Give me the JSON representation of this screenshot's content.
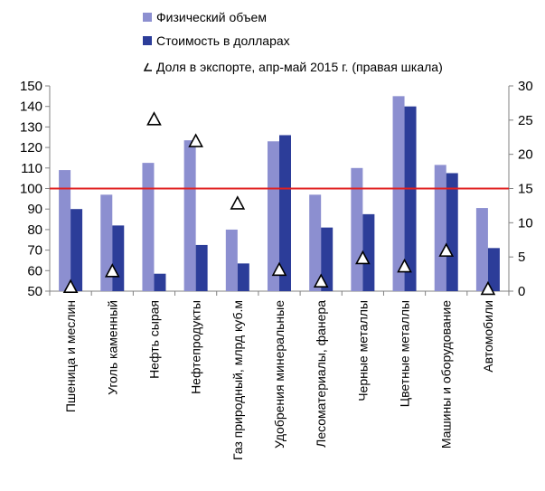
{
  "chart_data": {
    "type": "bar",
    "categories": [
      "Пшеница и меслин",
      "Уголь каменный",
      "Нефть сырая",
      "Нефтепродукты",
      "Газ природный, млрд куб.м",
      "Удобрения минеральные",
      "Лесоматериалы, фанера",
      "Черные металлы",
      "Цветные металлы",
      "Машины и оборудование",
      "Автомобили"
    ],
    "series": [
      {
        "name": "Физический объем",
        "type": "bar",
        "axis": "left",
        "color": "#8c8fd0",
        "values": [
          109,
          97,
          112.5,
          123.5,
          80,
          123,
          97,
          110,
          145,
          111.5,
          90.5
        ]
      },
      {
        "name": "Стоимость в долларах",
        "type": "bar",
        "axis": "left",
        "color": "#2c3d99",
        "values": [
          90,
          82,
          58.5,
          72.5,
          63.5,
          126,
          81,
          87.5,
          140,
          107.5,
          71
        ]
      },
      {
        "name": "Доля в экспорте, апр-май 2015 г. (правая шкала)",
        "type": "marker",
        "marker": "triangle",
        "axis": "right",
        "color": "#ffffff",
        "values": [
          0.5,
          2.8,
          25,
          21.8,
          12.7,
          3,
          1.3,
          4.7,
          3.5,
          5.8,
          0.2
        ]
      }
    ],
    "reference_line": {
      "value": 100,
      "axis": "left",
      "color": "#e02020"
    },
    "y_left": {
      "ylim": [
        50,
        150
      ],
      "ticks": [
        50,
        60,
        70,
        80,
        90,
        100,
        110,
        120,
        130,
        140,
        150
      ]
    },
    "y_right": {
      "ylim": [
        0,
        30
      ],
      "ticks": [
        0,
        5,
        10,
        15,
        20,
        25,
        30
      ]
    },
    "grid": false,
    "legend": {
      "placement": "top"
    }
  }
}
